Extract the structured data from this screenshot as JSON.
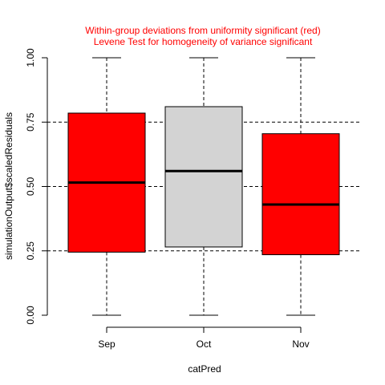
{
  "chart_data": {
    "type": "box",
    "title_lines": [
      "Within-group deviations from uniformity significant (red)",
      "Levene Test for homogeneity of variance significant"
    ],
    "xlabel": "catPred",
    "ylabel": "simulationOutput$scaledResiduals",
    "ylim": [
      0,
      1
    ],
    "yticks": [
      0,
      0.25,
      0.5,
      0.75,
      1
    ],
    "ytick_labels": [
      "0.00",
      "0.25",
      "0.50",
      "0.75",
      "1.00"
    ],
    "reference_lines": [
      0.25,
      0.5,
      0.75
    ],
    "categories": [
      "Sep",
      "Oct",
      "Nov"
    ],
    "boxes": [
      {
        "category": "Sep",
        "min": 0.0,
        "q1": 0.245,
        "median": 0.515,
        "q3": 0.785,
        "max": 1.0,
        "color": "#ff0000"
      },
      {
        "category": "Oct",
        "min": 0.0,
        "q1": 0.265,
        "median": 0.56,
        "q3": 0.81,
        "max": 1.0,
        "color": "#d3d3d3"
      },
      {
        "category": "Nov",
        "min": 0.0,
        "q1": 0.235,
        "median": 0.43,
        "q3": 0.705,
        "max": 1.0,
        "color": "#ff0000"
      }
    ],
    "colors": {
      "title": "#ff0000",
      "significant": "#ff0000",
      "not_significant": "#d3d3d3",
      "axis": "#000000"
    },
    "grid": false
  }
}
